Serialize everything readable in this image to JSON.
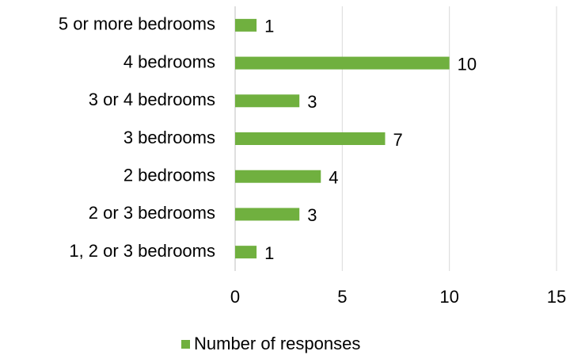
{
  "chart_data": {
    "type": "bar",
    "orientation": "horizontal",
    "categories": [
      "5 or more bedrooms",
      "4 bedrooms",
      "3 or 4 bedrooms",
      "3 bedrooms",
      "2 bedrooms",
      "2 or 3 bedrooms",
      "1, 2 or 3 bedrooms"
    ],
    "series": [
      {
        "name": "Number of responses",
        "color": "#70b03f",
        "values": [
          1,
          10,
          3,
          7,
          4,
          3,
          1
        ]
      }
    ],
    "xlim": [
      0,
      15
    ],
    "xticks": [
      0,
      5,
      10,
      15
    ],
    "grid": true,
    "legend": "bottom"
  }
}
